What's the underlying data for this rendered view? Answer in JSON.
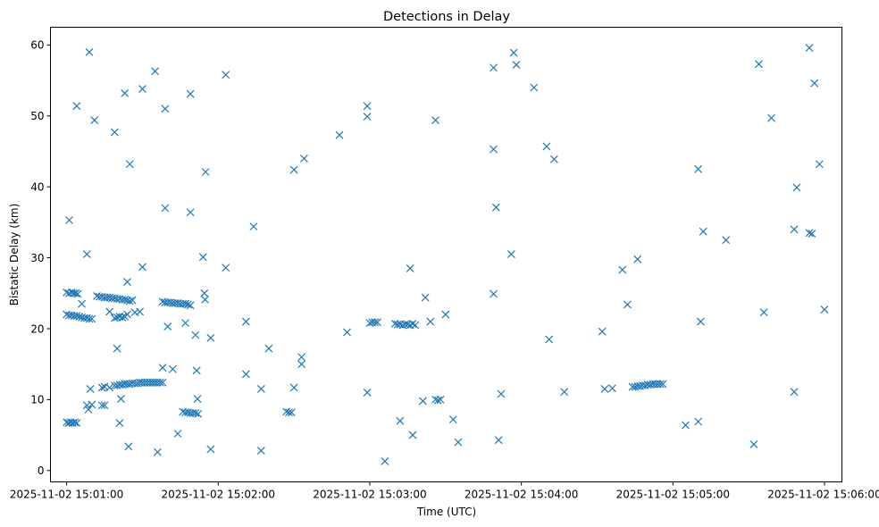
{
  "chart_data": {
    "type": "scatter",
    "title": "Detections in Delay",
    "xlabel": "Time (UTC)",
    "ylabel": "Bistatic Delay (km)",
    "marker": "x",
    "color": "#1f77b4",
    "x_unit": "seconds since 2025-11-02 15:01:00",
    "xlim": [
      -6.4,
      306.9
    ],
    "ylim": [
      -1.6,
      62.5
    ],
    "x_ticks": [
      {
        "value": 0,
        "label": "2025-11-02 15:01:00"
      },
      {
        "value": 60,
        "label": "2025-11-02 15:02:00"
      },
      {
        "value": 120,
        "label": "2025-11-02 15:03:00"
      },
      {
        "value": 180,
        "label": "2025-11-02 15:04:00"
      },
      {
        "value": 240,
        "label": "2025-11-02 15:05:00"
      },
      {
        "value": 300,
        "label": "2025-11-02 15:06:00"
      }
    ],
    "y_ticks": [
      {
        "value": 0,
        "label": "0"
      },
      {
        "value": 10,
        "label": "10"
      },
      {
        "value": 20,
        "label": "20"
      },
      {
        "value": 30,
        "label": "30"
      },
      {
        "value": 40,
        "label": "40"
      },
      {
        "value": 50,
        "label": "50"
      },
      {
        "value": 60,
        "label": "60"
      }
    ],
    "points": [
      [
        0,
        25.1
      ],
      [
        1,
        25.0
      ],
      [
        2,
        25.1
      ],
      [
        2.8,
        25.0
      ],
      [
        3.6,
        25.0
      ],
      [
        4.4,
        24.9
      ],
      [
        0,
        22.0
      ],
      [
        1,
        21.9
      ],
      [
        2,
        21.9
      ],
      [
        3,
        21.8
      ],
      [
        4,
        21.8
      ],
      [
        5,
        21.7
      ],
      [
        6,
        21.6
      ],
      [
        7,
        21.5
      ],
      [
        8,
        21.5
      ],
      [
        9,
        21.4
      ],
      [
        10,
        21.4
      ],
      [
        0,
        6.8
      ],
      [
        0.8,
        6.7
      ],
      [
        1.6,
        6.8
      ],
      [
        2.4,
        6.7
      ],
      [
        3.2,
        6.8
      ],
      [
        4,
        6.7
      ],
      [
        1,
        35.3
      ],
      [
        4,
        51.4
      ],
      [
        6,
        23.5
      ],
      [
        8,
        30.5
      ],
      [
        9,
        59.0
      ],
      [
        11,
        49.4
      ],
      [
        8,
        9.2
      ],
      [
        8.6,
        8.6
      ],
      [
        9.4,
        11.5
      ],
      [
        10,
        9.3
      ],
      [
        12,
        24.6
      ],
      [
        13,
        24.5
      ],
      [
        14,
        24.5
      ],
      [
        15,
        24.4
      ],
      [
        16,
        24.4
      ],
      [
        17,
        24.4
      ],
      [
        18,
        24.3
      ],
      [
        19,
        24.3
      ],
      [
        20,
        24.2
      ],
      [
        21,
        24.2
      ],
      [
        22,
        24.1
      ],
      [
        23,
        24.1
      ],
      [
        24,
        24.0
      ],
      [
        25,
        23.9
      ],
      [
        26,
        24.0
      ],
      [
        14,
        11.7
      ],
      [
        15,
        11.8
      ],
      [
        17,
        11.7
      ],
      [
        14,
        9.2
      ],
      [
        15,
        9.2
      ],
      [
        17,
        22.4
      ],
      [
        19,
        21.5
      ],
      [
        20,
        21.6
      ],
      [
        21,
        21.7
      ],
      [
        22,
        21.6
      ],
      [
        23,
        21.7
      ],
      [
        24,
        22.0
      ],
      [
        27,
        22.3
      ],
      [
        29,
        22.4
      ],
      [
        19,
        12.0
      ],
      [
        20,
        12.0
      ],
      [
        21,
        12.1
      ],
      [
        22,
        12.1
      ],
      [
        23,
        12.2
      ],
      [
        24,
        12.2
      ],
      [
        25,
        12.2
      ],
      [
        26,
        12.3
      ],
      [
        27,
        12.3
      ],
      [
        28,
        12.3
      ],
      [
        29,
        12.4
      ],
      [
        30,
        12.4
      ],
      [
        31,
        12.4
      ],
      [
        32,
        12.4
      ],
      [
        33,
        12.4
      ],
      [
        34,
        12.4
      ],
      [
        35,
        12.4
      ],
      [
        36,
        12.4
      ],
      [
        37,
        12.4
      ],
      [
        38,
        12.4
      ],
      [
        19,
        47.7
      ],
      [
        20,
        17.2
      ],
      [
        21,
        6.7
      ],
      [
        21.5,
        10.1
      ],
      [
        23,
        53.2
      ],
      [
        24,
        26.6
      ],
      [
        24.5,
        3.4
      ],
      [
        25,
        43.2
      ],
      [
        30,
        53.8
      ],
      [
        30,
        28.7
      ],
      [
        35,
        56.3
      ],
      [
        36,
        2.6
      ],
      [
        38,
        14.5
      ],
      [
        39,
        37.0
      ],
      [
        39,
        51.0
      ],
      [
        40,
        20.3
      ],
      [
        38,
        23.8
      ],
      [
        39,
        23.7
      ],
      [
        40,
        23.7
      ],
      [
        41,
        23.7
      ],
      [
        42,
        23.6
      ],
      [
        43,
        23.6
      ],
      [
        44,
        23.6
      ],
      [
        45,
        23.5
      ],
      [
        46,
        23.5
      ],
      [
        47,
        23.5
      ],
      [
        48,
        23.4
      ],
      [
        49,
        23.3
      ],
      [
        42,
        14.3
      ],
      [
        44,
        5.2
      ],
      [
        46,
        8.3
      ],
      [
        47,
        8.2
      ],
      [
        48,
        8.2
      ],
      [
        49,
        8.1
      ],
      [
        50,
        8.1
      ],
      [
        51,
        8.1
      ],
      [
        52,
        8.0
      ],
      [
        47,
        20.8
      ],
      [
        49,
        53.1
      ],
      [
        49,
        36.4
      ],
      [
        51,
        19.1
      ],
      [
        51.5,
        14.1
      ],
      [
        51.8,
        10.1
      ],
      [
        54,
        30.1
      ],
      [
        54.5,
        25.0
      ],
      [
        54.8,
        24.1
      ],
      [
        55,
        42.1
      ],
      [
        57,
        18.7
      ],
      [
        57,
        3.0
      ],
      [
        63,
        55.8
      ],
      [
        63,
        28.6
      ],
      [
        71,
        21.0
      ],
      [
        71,
        13.6
      ],
      [
        74,
        34.4
      ],
      [
        77,
        2.8
      ],
      [
        77,
        11.5
      ],
      [
        80,
        17.2
      ],
      [
        87,
        8.3
      ],
      [
        88,
        8.2
      ],
      [
        89,
        8.2
      ],
      [
        90,
        11.7
      ],
      [
        90,
        42.4
      ],
      [
        93,
        15.0
      ],
      [
        93,
        16.0
      ],
      [
        94,
        44.0
      ],
      [
        108,
        47.3
      ],
      [
        111,
        19.5
      ],
      [
        119,
        49.9
      ],
      [
        119,
        51.4
      ],
      [
        119,
        11.0
      ],
      [
        120,
        20.8
      ],
      [
        121,
        20.9
      ],
      [
        122,
        20.9
      ],
      [
        123,
        20.9
      ],
      [
        126,
        1.3
      ],
      [
        130,
        20.7
      ],
      [
        131,
        20.6
      ],
      [
        132,
        20.6
      ],
      [
        133,
        20.5
      ],
      [
        134,
        20.6
      ],
      [
        135,
        20.6
      ],
      [
        136,
        20.5
      ],
      [
        137,
        20.7
      ],
      [
        138,
        20.5
      ],
      [
        132,
        7.0
      ],
      [
        136,
        28.5
      ],
      [
        137,
        5.0
      ],
      [
        141,
        9.8
      ],
      [
        142,
        24.4
      ],
      [
        144,
        21.0
      ],
      [
        146,
        10.0
      ],
      [
        147,
        9.9
      ],
      [
        148,
        10.0
      ],
      [
        146,
        49.4
      ],
      [
        150,
        22.0
      ],
      [
        153,
        7.2
      ],
      [
        155,
        4.0
      ],
      [
        169,
        56.8
      ],
      [
        169,
        45.3
      ],
      [
        169,
        24.9
      ],
      [
        170,
        37.1
      ],
      [
        171,
        4.3
      ],
      [
        172,
        10.8
      ],
      [
        176,
        30.5
      ],
      [
        177,
        58.9
      ],
      [
        178,
        57.2
      ],
      [
        185,
        54.0
      ],
      [
        190,
        45.7
      ],
      [
        191,
        18.5
      ],
      [
        193,
        43.9
      ],
      [
        197,
        11.1
      ],
      [
        212,
        19.6
      ],
      [
        213,
        11.5
      ],
      [
        216,
        11.6
      ],
      [
        220,
        28.3
      ],
      [
        222,
        23.4
      ],
      [
        226,
        29.8
      ],
      [
        224,
        11.8
      ],
      [
        225,
        11.8
      ],
      [
        226,
        11.9
      ],
      [
        227,
        11.9
      ],
      [
        228,
        12.0
      ],
      [
        229,
        12.0
      ],
      [
        230,
        12.1
      ],
      [
        231,
        12.1
      ],
      [
        232,
        12.2
      ],
      [
        233,
        12.2
      ],
      [
        234,
        12.2
      ],
      [
        235,
        12.2
      ],
      [
        236,
        12.2
      ],
      [
        245,
        6.4
      ],
      [
        250,
        42.5
      ],
      [
        250,
        6.9
      ],
      [
        251,
        21.0
      ],
      [
        252,
        33.7
      ],
      [
        261,
        32.5
      ],
      [
        272,
        3.7
      ],
      [
        274,
        57.3
      ],
      [
        276,
        22.3
      ],
      [
        279,
        49.7
      ],
      [
        288,
        34.0
      ],
      [
        288,
        11.1
      ],
      [
        289,
        39.9
      ],
      [
        294,
        59.6
      ],
      [
        294,
        33.5
      ],
      [
        295,
        33.4
      ],
      [
        296,
        54.6
      ],
      [
        298,
        43.2
      ],
      [
        300,
        22.7
      ]
    ]
  }
}
